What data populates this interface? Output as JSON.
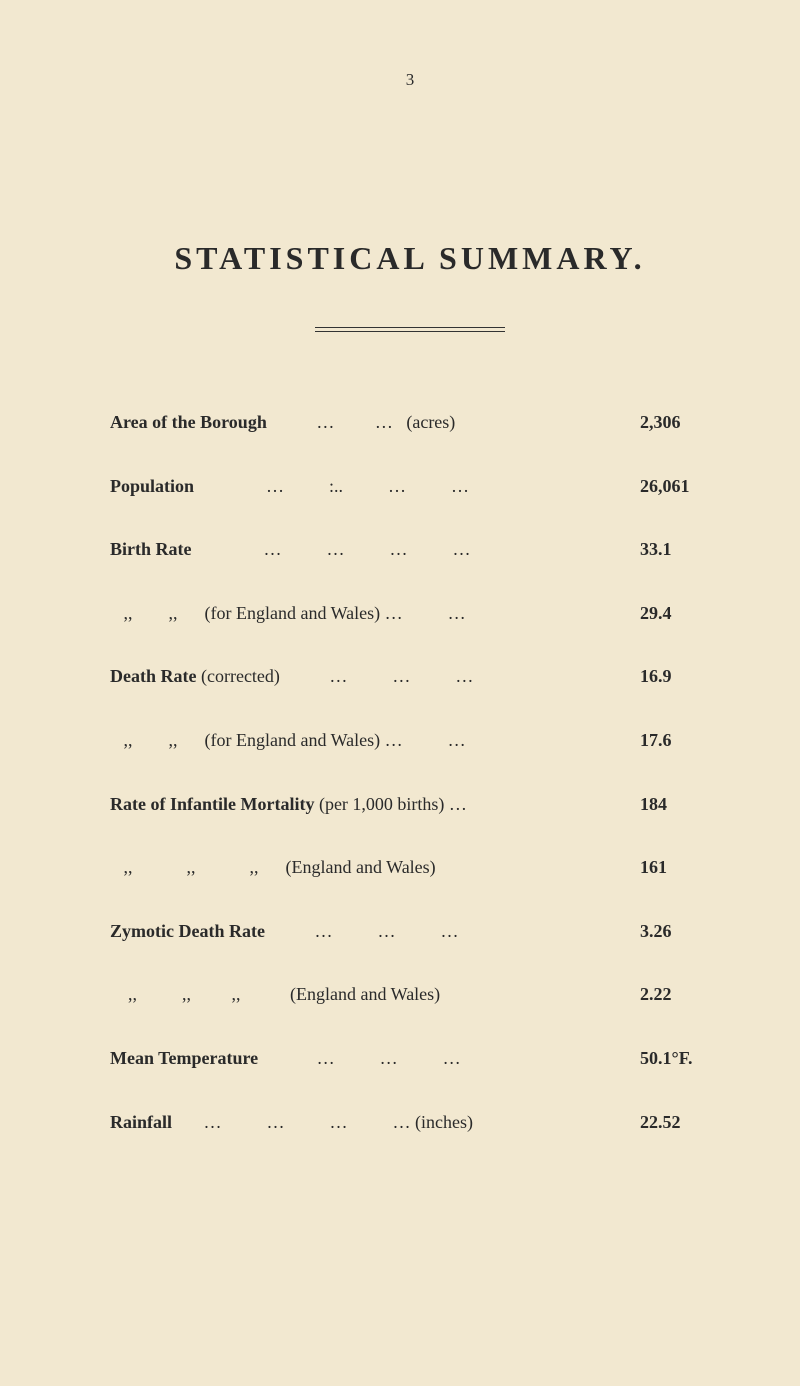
{
  "page_number": "3",
  "title": "STATISTICAL  SUMMARY.",
  "background_color": "#f2e8d0",
  "text_color": "#2a2a2a",
  "rows": [
    {
      "label_html": "<span class=\"label-bold\">Area of the Borough</span><span class=\"label-light\">           …         …   (acres)</span>",
      "value": "2,306"
    },
    {
      "label_html": "<span class=\"label-bold\">Population</span><span class=\"label-light\">                …          :..          …          …</span>",
      "value": "26,061"
    },
    {
      "label_html": "<span class=\"label-bold\">Birth Rate</span><span class=\"label-light\">                …          …          …          …</span>",
      "value": "33.1"
    },
    {
      "label_html": "<span class=\"label-light\">   ,,        ,,      (for England and Wales) …          …</span>",
      "value": "29.4"
    },
    {
      "label_html": "<span class=\"label-bold\">Death Rate</span><span class=\"label-light\"> (corrected)           …          …          …</span>",
      "value": "16.9"
    },
    {
      "label_html": "<span class=\"label-light\">   ,,        ,,      (for England and Wales) …          …</span>",
      "value": "17.6"
    },
    {
      "label_html": "<span class=\"label-bold\">Rate of Infantile Mortality</span><span class=\"label-light\"> (per 1,000 births) …</span>",
      "value": "184"
    },
    {
      "label_html": "<span class=\"label-light\">   ,,            ,,            ,,      (England and Wales)</span>",
      "value": "161"
    },
    {
      "label_html": "<span class=\"label-bold\">Zymotic Death Rate</span><span class=\"label-light\">           …          …          …</span>",
      "value": "3.26"
    },
    {
      "label_html": "<span class=\"label-light\">    ,,          ,,         ,,           (England and Wales)</span>",
      "value": "2.22"
    },
    {
      "label_html": "<span class=\"label-bold\">Mean Temperature</span><span class=\"label-light\">             …          …          …</span>",
      "value": "50.1°F."
    },
    {
      "label_html": "<span class=\"label-bold\">Rainfall</span><span class=\"label-light\">       …          …          …          … (inches)</span>",
      "value": "22.52"
    }
  ]
}
